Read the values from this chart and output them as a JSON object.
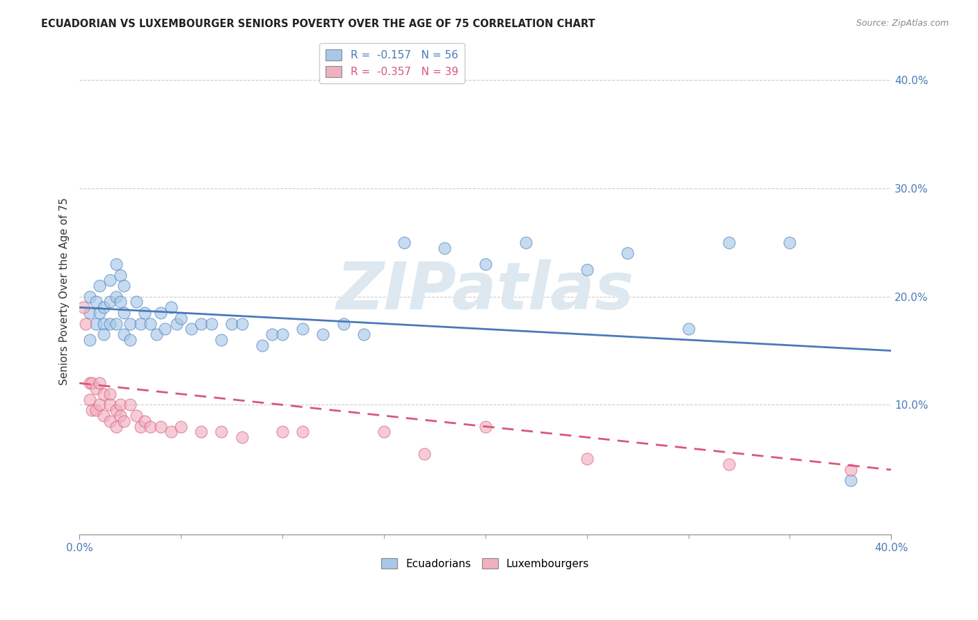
{
  "title": "ECUADORIAN VS LUXEMBOURGER SENIORS POVERTY OVER THE AGE OF 75 CORRELATION CHART",
  "source": "Source: ZipAtlas.com",
  "ylabel": "Seniors Poverty Over the Age of 75",
  "xlim": [
    0.0,
    0.4
  ],
  "ylim": [
    -0.02,
    0.43
  ],
  "yticks": [
    0.0,
    0.1,
    0.2,
    0.3,
    0.4
  ],
  "ytick_labels": [
    "",
    "10.0%",
    "20.0%",
    "30.0%",
    "40.0%"
  ],
  "legend_blue_r": "-0.157",
  "legend_blue_n": "56",
  "legend_pink_r": "-0.357",
  "legend_pink_n": "39",
  "blue_color": "#a8c8e8",
  "pink_color": "#f0b0c0",
  "blue_line_color": "#4a7ab8",
  "pink_line_color": "#d85878",
  "watermark_text": "ZIPatlas",
  "watermark_color": "#dde8f0",
  "background_color": "#ffffff",
  "ecuadorians_x": [
    0.005,
    0.005,
    0.005,
    0.008,
    0.008,
    0.01,
    0.01,
    0.012,
    0.012,
    0.012,
    0.015,
    0.015,
    0.015,
    0.018,
    0.018,
    0.018,
    0.02,
    0.02,
    0.022,
    0.022,
    0.022,
    0.025,
    0.025,
    0.028,
    0.03,
    0.032,
    0.035,
    0.038,
    0.04,
    0.042,
    0.045,
    0.048,
    0.05,
    0.055,
    0.06,
    0.065,
    0.07,
    0.075,
    0.08,
    0.09,
    0.095,
    0.1,
    0.11,
    0.12,
    0.13,
    0.14,
    0.16,
    0.18,
    0.2,
    0.22,
    0.25,
    0.27,
    0.3,
    0.32,
    0.35,
    0.38
  ],
  "ecuadorians_y": [
    0.2,
    0.185,
    0.16,
    0.175,
    0.195,
    0.21,
    0.185,
    0.175,
    0.165,
    0.19,
    0.215,
    0.195,
    0.175,
    0.23,
    0.2,
    0.175,
    0.22,
    0.195,
    0.21,
    0.185,
    0.165,
    0.175,
    0.16,
    0.195,
    0.175,
    0.185,
    0.175,
    0.165,
    0.185,
    0.17,
    0.19,
    0.175,
    0.18,
    0.17,
    0.175,
    0.175,
    0.16,
    0.175,
    0.175,
    0.155,
    0.165,
    0.165,
    0.17,
    0.165,
    0.175,
    0.165,
    0.25,
    0.245,
    0.23,
    0.25,
    0.225,
    0.24,
    0.17,
    0.25,
    0.25,
    0.03
  ],
  "luxembourgers_x": [
    0.002,
    0.003,
    0.005,
    0.005,
    0.006,
    0.006,
    0.008,
    0.008,
    0.01,
    0.01,
    0.012,
    0.012,
    0.015,
    0.015,
    0.015,
    0.018,
    0.018,
    0.02,
    0.02,
    0.022,
    0.025,
    0.028,
    0.03,
    0.032,
    0.035,
    0.04,
    0.045,
    0.05,
    0.06,
    0.07,
    0.08,
    0.1,
    0.11,
    0.15,
    0.17,
    0.2,
    0.25,
    0.32,
    0.38
  ],
  "luxembourgers_y": [
    0.19,
    0.175,
    0.12,
    0.105,
    0.12,
    0.095,
    0.115,
    0.095,
    0.12,
    0.1,
    0.11,
    0.09,
    0.11,
    0.1,
    0.085,
    0.095,
    0.08,
    0.1,
    0.09,
    0.085,
    0.1,
    0.09,
    0.08,
    0.085,
    0.08,
    0.08,
    0.075,
    0.08,
    0.075,
    0.075,
    0.07,
    0.075,
    0.075,
    0.075,
    0.055,
    0.08,
    0.05,
    0.045,
    0.04
  ]
}
